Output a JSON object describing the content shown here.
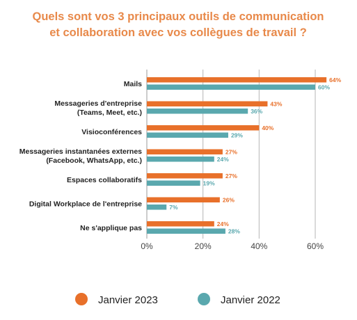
{
  "chart_data": {
    "type": "bar",
    "orientation": "horizontal",
    "title": [
      "Quels sont vos 3 principaux outils de communication",
      "et collaboration avec vos collègues de travail ?"
    ],
    "categories": [
      [
        "Mails"
      ],
      [
        "Messageries d'entreprise",
        "(Teams, Meet, etc.)"
      ],
      [
        "Visioconférences"
      ],
      [
        "Messageries instantanées externes",
        "(Facebook, WhatsApp, etc.)"
      ],
      [
        "Espaces collaboratifs"
      ],
      [
        "Digital Workplace de l'entreprise"
      ],
      [
        "Ne s'applique pas"
      ]
    ],
    "series": [
      {
        "name": "Janvier 2023",
        "color": "#e8702a",
        "values": [
          64,
          43,
          40,
          27,
          27,
          26,
          24
        ],
        "labels": [
          "64%",
          "43%",
          "40%",
          "27%",
          "27%",
          "26%",
          "24%"
        ]
      },
      {
        "name": "Janvier 2022",
        "color": "#5aa8ae",
        "values": [
          60,
          36,
          29,
          24,
          19,
          7,
          28
        ],
        "labels": [
          "60%",
          "36%",
          "29%",
          "24%",
          "19%",
          "7%",
          "28%"
        ]
      }
    ],
    "xlim": [
      0,
      60
    ],
    "xticks": [
      0,
      20,
      40,
      60
    ],
    "xtick_labels": [
      "0%",
      "20%",
      "40%",
      "60%"
    ],
    "grid": true,
    "legend_position": "bottom"
  }
}
